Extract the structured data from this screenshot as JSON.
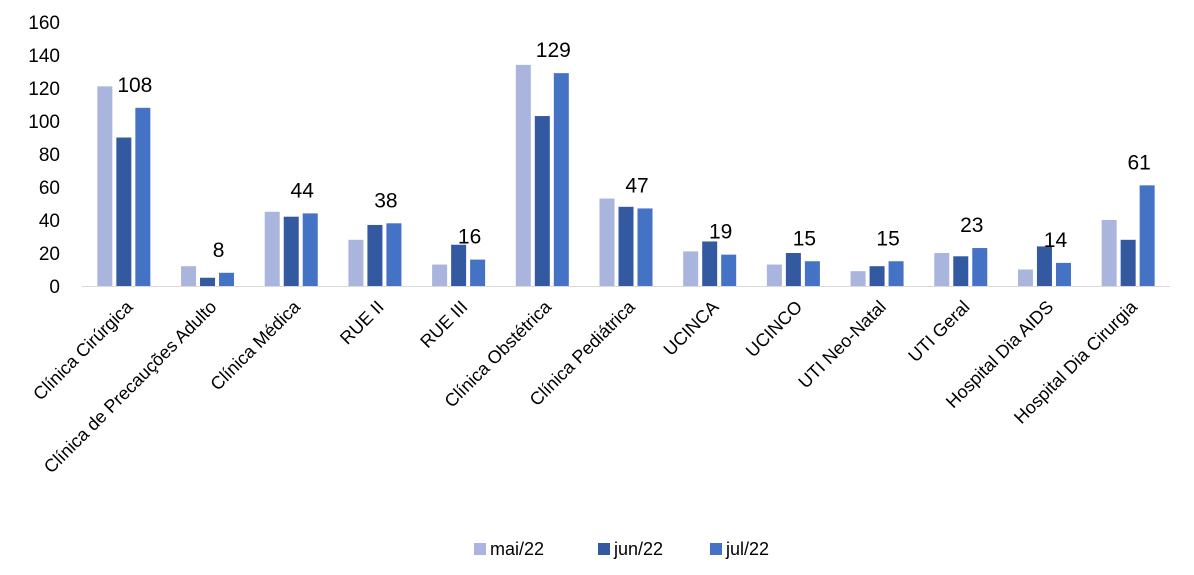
{
  "chart_data": {
    "type": "bar",
    "title": "",
    "xlabel": "",
    "ylabel": "",
    "ylim": [
      0,
      160
    ],
    "yticks": [
      0,
      20,
      40,
      60,
      80,
      100,
      120,
      140,
      160
    ],
    "grid": false,
    "legend_position": "bottom",
    "categories": [
      "Clínica Cirúrgica",
      "Clínica de Precauções Adulto",
      "Clínica Médica",
      "RUE II",
      "RUE III",
      "Clínica Obstétrica",
      "Clínica Pediátrica",
      "UCINCA",
      "UCINCO",
      "UTI Neo-Natal",
      "UTI Geral",
      "Hospital Dia AIDS",
      "Hospital Dia Cirurgia"
    ],
    "series": [
      {
        "name": "mai/22",
        "color": "#A9B5DD",
        "values": [
          121,
          12,
          45,
          28,
          13,
          134,
          53,
          21,
          13,
          9,
          20,
          10,
          40
        ]
      },
      {
        "name": "jun/22",
        "color": "#3359A0",
        "values": [
          90,
          5,
          42,
          37,
          25,
          103,
          48,
          27,
          20,
          12,
          18,
          24,
          28
        ]
      },
      {
        "name": "jul/22",
        "color": "#4472C4",
        "values": [
          108,
          8,
          44,
          38,
          16,
          129,
          47,
          19,
          15,
          15,
          23,
          14,
          61
        ]
      }
    ],
    "data_labels_series": "jul/22"
  }
}
